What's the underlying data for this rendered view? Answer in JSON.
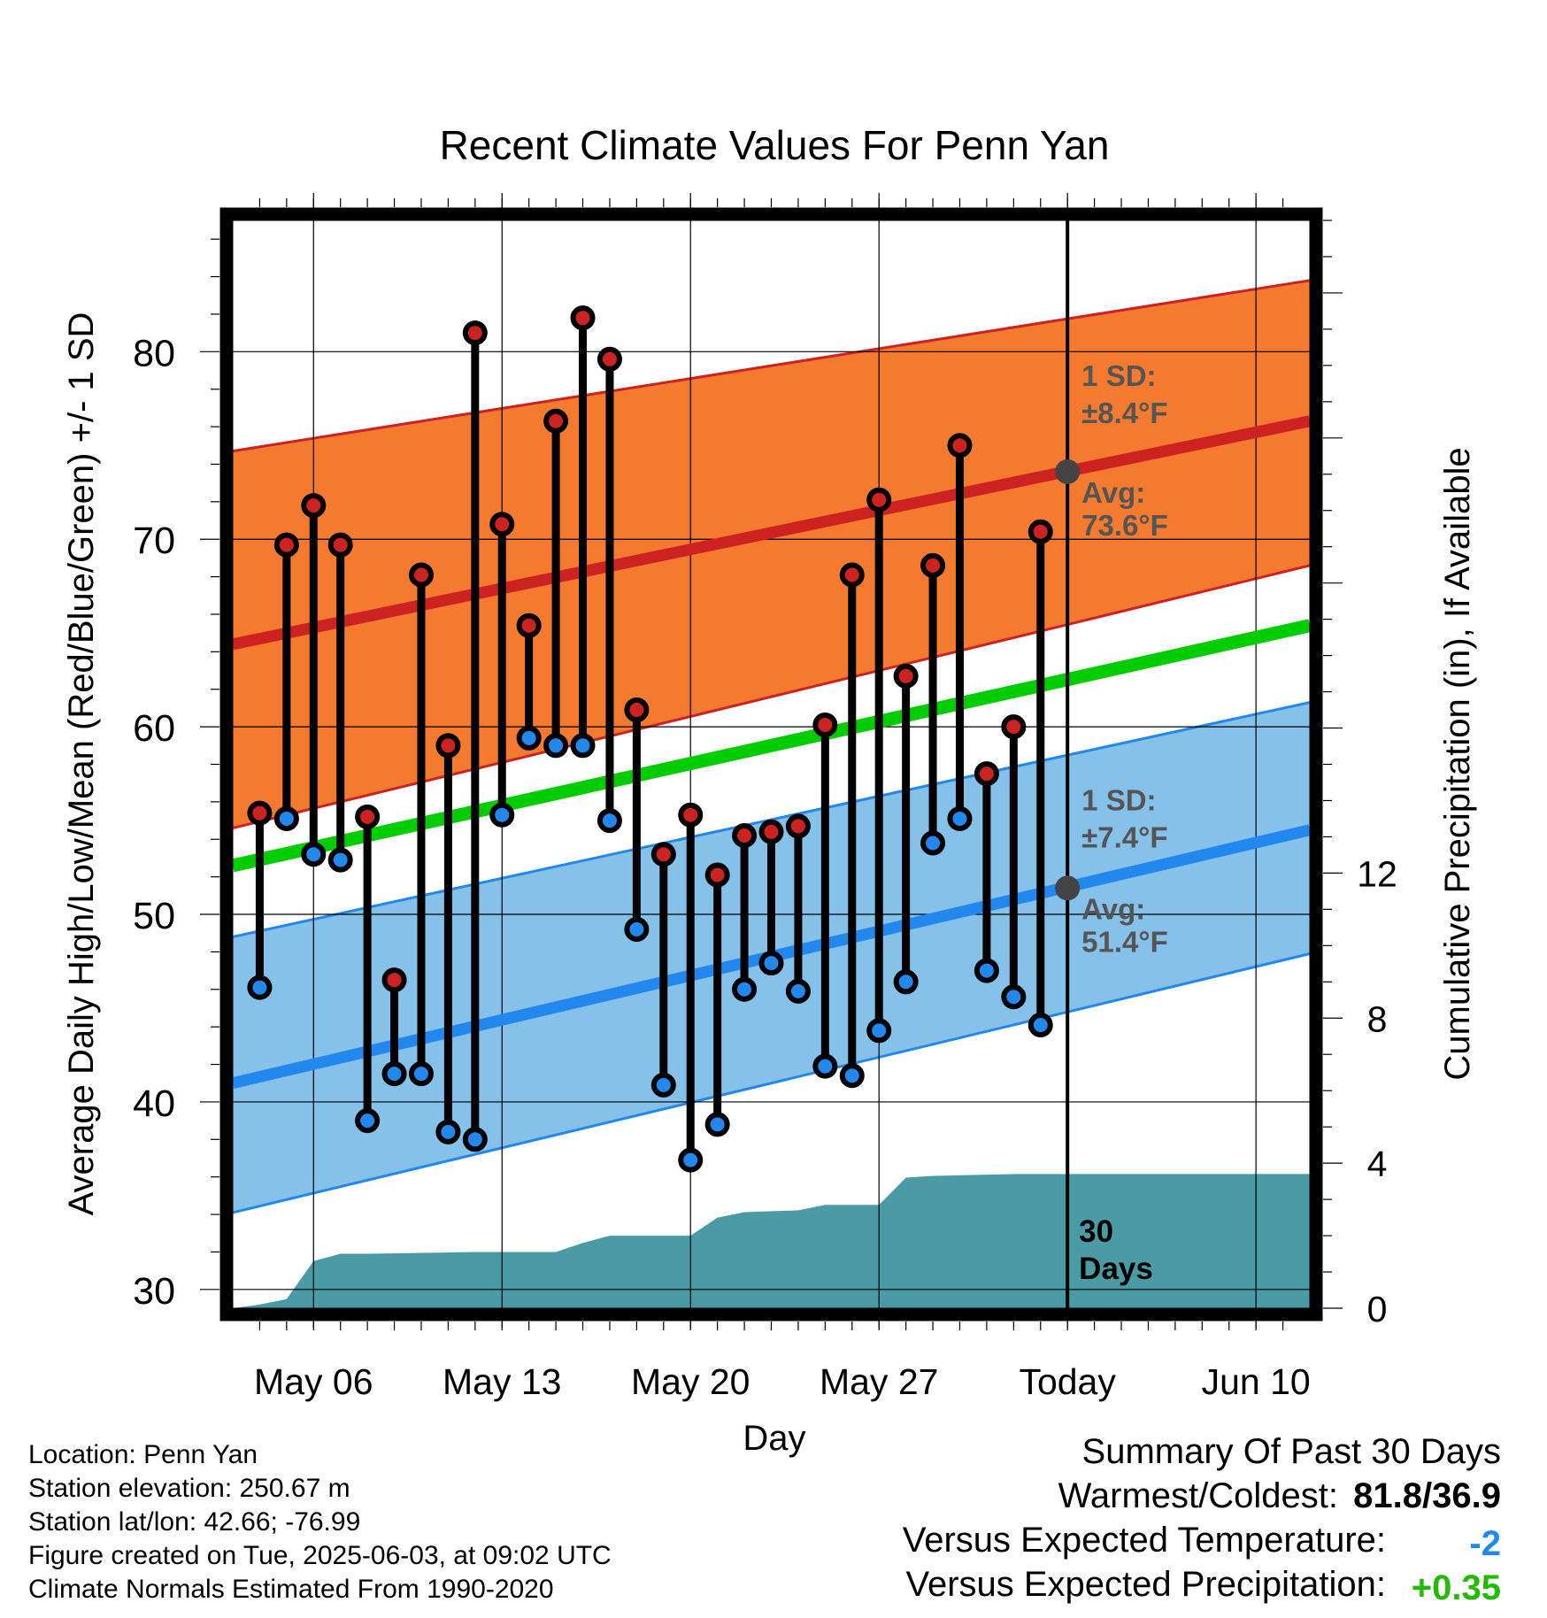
{
  "chart_data": {
    "type": "line",
    "title": "Recent Climate Values For Penn Yan",
    "xlabel": "Day",
    "ylabel": "Average Daily High/Low/Mean (Red/Blue/Green) +/- 1 SD",
    "y2label": "Cumulative Precipitation (in), If Available",
    "ylim": [
      29,
      87
    ],
    "y2lim": [
      0,
      30
    ],
    "yticks": [
      30,
      40,
      50,
      60,
      70,
      80
    ],
    "y2ticks": [
      0,
      4,
      8,
      12
    ],
    "x_tick_labels": [
      {
        "date": "2025-05-06",
        "label": "May 06"
      },
      {
        "date": "2025-05-13",
        "label": "May 13"
      },
      {
        "date": "2025-05-20",
        "label": "May 20"
      },
      {
        "date": "2025-05-27",
        "label": "May 27"
      },
      {
        "date": "2025-06-03",
        "label": "Today"
      },
      {
        "date": "2025-06-10",
        "label": "Jun 10"
      }
    ],
    "xlim": [
      "2025-05-03",
      "2025-06-12"
    ],
    "today": "2025-06-03",
    "days_label": "30 Days",
    "colors": {
      "high": "#cc2222",
      "low": "#2288ee",
      "mean": "#00cc00",
      "high_band": "#f47a30",
      "low_band": "#85c1e9",
      "precip": "#4a9ba5",
      "marker": "#444444"
    },
    "normals": {
      "dates": [
        "2025-05-03",
        "2025-06-12"
      ],
      "high_avg": [
        64.4,
        76.3
      ],
      "high_upper": [
        74.7,
        83.8
      ],
      "high_lower": [
        54.6,
        68.6
      ],
      "low_avg": [
        41.0,
        54.5
      ],
      "low_upper": [
        48.8,
        61.3
      ],
      "low_lower": [
        34.1,
        47.9
      ],
      "mean_avg": [
        52.6,
        65.4
      ]
    },
    "high_annotation": {
      "sd_label": "1 SD:",
      "sd_value": "±8.4°F",
      "avg_label": "Avg:",
      "avg_value": "73.6°F",
      "avg": 73.6
    },
    "low_annotation": {
      "sd_label": "1 SD:",
      "sd_value": "±7.4°F",
      "avg_label": "Avg:",
      "avg_value": "51.4°F",
      "avg": 51.4
    },
    "daily": {
      "dates": [
        "2025-05-04",
        "2025-05-05",
        "2025-05-06",
        "2025-05-07",
        "2025-05-08",
        "2025-05-09",
        "2025-05-10",
        "2025-05-11",
        "2025-05-12",
        "2025-05-13",
        "2025-05-14",
        "2025-05-15",
        "2025-05-16",
        "2025-05-17",
        "2025-05-18",
        "2025-05-19",
        "2025-05-20",
        "2025-05-21",
        "2025-05-22",
        "2025-05-23",
        "2025-05-24",
        "2025-05-25",
        "2025-05-26",
        "2025-05-27",
        "2025-05-28",
        "2025-05-29",
        "2025-05-30",
        "2025-05-31",
        "2025-06-01",
        "2025-06-02"
      ],
      "high": [
        55.4,
        69.7,
        71.8,
        69.7,
        55.2,
        46.5,
        68.1,
        59.0,
        81.0,
        70.8,
        65.4,
        76.3,
        81.8,
        79.6,
        60.9,
        53.2,
        55.3,
        52.1,
        54.2,
        54.4,
        54.7,
        60.1,
        68.1,
        72.1,
        62.7,
        68.6,
        75.0,
        57.5,
        60.0,
        70.4
      ],
      "low": [
        46.1,
        55.1,
        53.2,
        52.9,
        39.0,
        41.5,
        41.5,
        38.4,
        38.0,
        55.3,
        59.4,
        59.0,
        59.0,
        55.0,
        49.2,
        40.9,
        36.9,
        38.8,
        46.0,
        47.4,
        45.9,
        41.9,
        41.4,
        43.8,
        46.4,
        53.8,
        55.1,
        47.0,
        45.6,
        44.1
      ]
    },
    "precip": {
      "dates": [
        "2025-05-03",
        "2025-05-04",
        "2025-05-05",
        "2025-05-06",
        "2025-05-07",
        "2025-05-08",
        "2025-05-12",
        "2025-05-15",
        "2025-05-16",
        "2025-05-17",
        "2025-05-20",
        "2025-05-21",
        "2025-05-22",
        "2025-05-24",
        "2025-05-25",
        "2025-05-27",
        "2025-05-28",
        "2025-05-29",
        "2025-06-01",
        "2025-06-12"
      ],
      "values": [
        0.0,
        0.1,
        0.25,
        1.3,
        1.5,
        1.5,
        1.55,
        1.55,
        1.8,
        2.0,
        2.0,
        2.5,
        2.65,
        2.7,
        2.85,
        2.85,
        3.6,
        3.65,
        3.7,
        3.7
      ]
    }
  },
  "info": {
    "location": "Location: Penn Yan",
    "elevation": "Station elevation: 250.67 m",
    "latlon": "Station lat/lon: 42.66; -76.99",
    "created": "Figure created on Tue, 2025-06-03, at 09:02 UTC",
    "normals_period": "Climate Normals Estimated From 1990-2020"
  },
  "summary": {
    "heading": "Summary Of Past 30 Days",
    "warm_cold_label": "Warmest/Coldest:",
    "warm_cold_value": "81.8/36.9",
    "temp_label": "Versus Expected Temperature:",
    "temp_value": "-2",
    "temp_color": "#2288ee",
    "precip_label": "Versus Expected Precipitation:",
    "precip_value": "+0.35",
    "precip_color": "#22bb00"
  }
}
